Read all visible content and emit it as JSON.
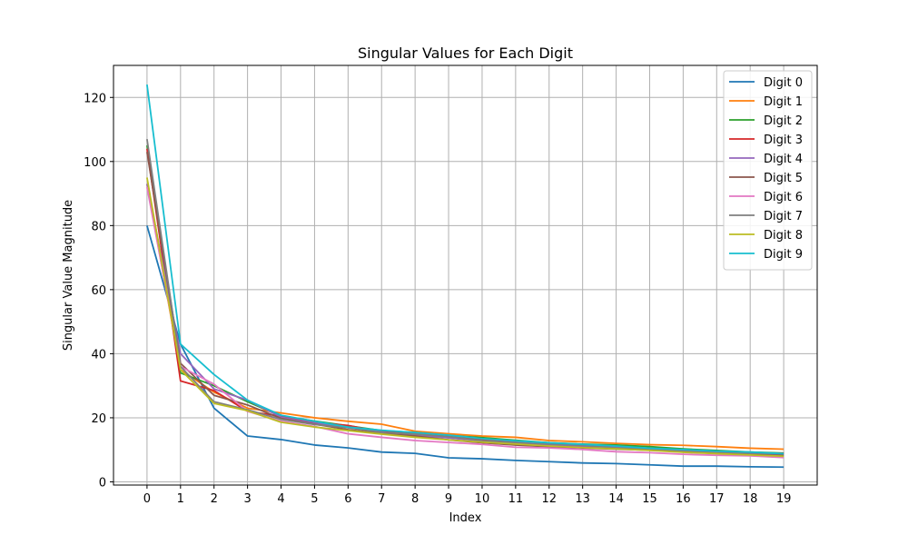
{
  "chart_data": {
    "type": "line",
    "title": "Singular Values for Each Digit",
    "xlabel": "Index",
    "ylabel": "Singular Value Magnitude",
    "xlim": [
      -1,
      20
    ],
    "ylim": [
      -1,
      130
    ],
    "xticks": [
      0,
      1,
      2,
      3,
      4,
      5,
      6,
      7,
      8,
      9,
      10,
      11,
      12,
      13,
      14,
      15,
      16,
      17,
      18,
      19
    ],
    "yticks": [
      0,
      20,
      40,
      60,
      80,
      100,
      120
    ],
    "grid": true,
    "legend_position": "top-right",
    "x": [
      0,
      1,
      2,
      3,
      4,
      5,
      6,
      7,
      8,
      9,
      10,
      11,
      12,
      13,
      14,
      15,
      16,
      17,
      18,
      19
    ],
    "series": [
      {
        "name": "Digit 0",
        "color": "#1f77b4",
        "values": [
          80,
          43,
          23,
          14.3,
          13.2,
          11.5,
          10.6,
          9.3,
          8.9,
          7.5,
          7.2,
          6.7,
          6.3,
          5.9,
          5.7,
          5.3,
          4.9,
          4.9,
          4.7,
          4.6
        ]
      },
      {
        "name": "Digit 1",
        "color": "#ff7f0e",
        "values": [
          93,
          35,
          28,
          23,
          21.5,
          20,
          18.9,
          18,
          15.8,
          15,
          14.3,
          13.9,
          12.9,
          12.5,
          12,
          11.6,
          11.4,
          11,
          10.5,
          10.2
        ]
      },
      {
        "name": "Digit 2",
        "color": "#2ca02c",
        "values": [
          105,
          34,
          30,
          25,
          20.5,
          19,
          17.5,
          16,
          15.4,
          14.5,
          13.8,
          13,
          12.2,
          11.8,
          11.5,
          11,
          10.3,
          9.8,
          9.3,
          9
        ]
      },
      {
        "name": "Digit 3",
        "color": "#d62728",
        "values": [
          104,
          31.5,
          28.5,
          22,
          20.5,
          18.5,
          17.6,
          15.6,
          14.9,
          14.1,
          13.3,
          12.4,
          11.5,
          11,
          10.9,
          10.3,
          9.9,
          9.5,
          9.1,
          8.9
        ]
      },
      {
        "name": "Digit 4",
        "color": "#9467bd",
        "values": [
          93,
          40,
          29,
          25.5,
          20.2,
          18.3,
          17,
          15.5,
          14.5,
          13.7,
          12.8,
          12.2,
          11.6,
          11.2,
          10.8,
          10.4,
          9.7,
          9.3,
          8.8,
          8.4
        ]
      },
      {
        "name": "Digit 5",
        "color": "#8c564b",
        "values": [
          103,
          37,
          27,
          24,
          19.8,
          18,
          16.3,
          15.1,
          14.3,
          13.1,
          12.2,
          11.5,
          11,
          10.6,
          10.2,
          9.9,
          9.4,
          8.9,
          8.5,
          8.2
        ]
      },
      {
        "name": "Digit 6",
        "color": "#e377c2",
        "values": [
          92,
          36,
          30.5,
          22,
          18.9,
          17.3,
          15,
          13.9,
          12.9,
          12.3,
          11.7,
          10.8,
          10.6,
          10.1,
          9.4,
          9.1,
          8.6,
          8.3,
          8.1,
          7.6
        ]
      },
      {
        "name": "Digit 7",
        "color": "#7f7f7f",
        "values": [
          107,
          36,
          25,
          22.5,
          19.5,
          17.9,
          16.9,
          15.4,
          14.9,
          14.1,
          12.9,
          12.3,
          11.8,
          11.4,
          10.6,
          10.2,
          9.6,
          9.3,
          8.9,
          8.8
        ]
      },
      {
        "name": "Digit 8",
        "color": "#bcbd22",
        "values": [
          95,
          35,
          24.5,
          22.2,
          18.6,
          17.1,
          16,
          14.9,
          13.9,
          13.1,
          12.4,
          11.8,
          11.2,
          10.7,
          10.3,
          9.8,
          9.2,
          8.8,
          8.4,
          8
        ]
      },
      {
        "name": "Digit 9",
        "color": "#17becf",
        "values": [
          124,
          43,
          33.5,
          25.5,
          20.8,
          18.9,
          17.1,
          16.1,
          15.4,
          14.6,
          13.5,
          12.8,
          12.2,
          11.7,
          11.2,
          10.5,
          10.1,
          9.6,
          9.3,
          8.8
        ]
      }
    ]
  }
}
